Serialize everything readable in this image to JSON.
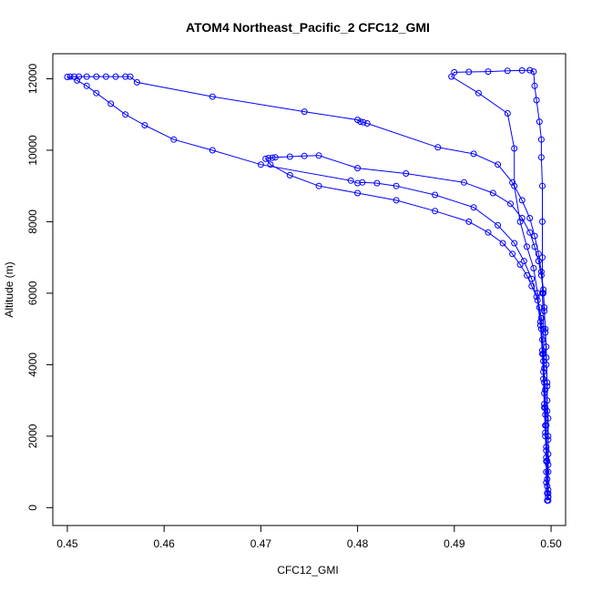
{
  "chart_data": {
    "type": "line",
    "title": "ATOM4 Northeast_Pacific_2 CFC12_GMI",
    "xlabel": "CFC12_GMI",
    "ylabel": "Altitude (m)",
    "xlim": [
      0.4485,
      0.5015
    ],
    "ylim": [
      -500,
      12700
    ],
    "x_ticks": [
      0.45,
      0.46,
      0.47,
      0.48,
      0.49,
      0.5
    ],
    "x_tick_labels": [
      "0.45",
      "0.46",
      "0.47",
      "0.48",
      "0.49",
      "0.50"
    ],
    "y_ticks": [
      0,
      2000,
      4000,
      6000,
      8000,
      10000,
      12000
    ],
    "y_tick_labels": [
      "0",
      "2000",
      "4000",
      "6000",
      "8000",
      "10000",
      "12000"
    ],
    "grid": false,
    "legend": "none",
    "color": "#0000ff",
    "series": [
      {
        "points": [
          [
            0.4996,
            200
          ],
          [
            0.4996,
            400
          ],
          [
            0.4995,
            700
          ],
          [
            0.4995,
            1000
          ],
          [
            0.4995,
            1300
          ],
          [
            0.4995,
            1600
          ],
          [
            0.4994,
            2000
          ],
          [
            0.4994,
            2300
          ],
          [
            0.4994,
            2600
          ],
          [
            0.4993,
            2900
          ],
          [
            0.4993,
            3200
          ],
          [
            0.4993,
            3500
          ],
          [
            0.4992,
            3800
          ],
          [
            0.4992,
            4100
          ],
          [
            0.4991,
            4400
          ],
          [
            0.4991,
            4700
          ],
          [
            0.499,
            5000
          ],
          [
            0.499,
            5300
          ],
          [
            0.4988,
            5600
          ],
          [
            0.4985,
            5900
          ],
          [
            0.498,
            6200
          ],
          [
            0.4975,
            6500
          ],
          [
            0.4968,
            6800
          ],
          [
            0.496,
            7100
          ],
          [
            0.495,
            7400
          ],
          [
            0.4935,
            7700
          ],
          [
            0.4915,
            8000
          ],
          [
            0.488,
            8300
          ],
          [
            0.484,
            8600
          ],
          [
            0.48,
            8800
          ],
          [
            0.476,
            9000
          ],
          [
            0.473,
            9300
          ],
          [
            0.471,
            9600
          ],
          [
            0.4705,
            9760
          ],
          [
            0.4708,
            9780
          ],
          [
            0.4712,
            9790
          ],
          [
            0.4715,
            9800
          ],
          [
            0.473,
            9820
          ],
          [
            0.4745,
            9840
          ],
          [
            0.476,
            9850
          ],
          [
            0.48,
            9500
          ],
          [
            0.485,
            9350
          ],
          [
            0.491,
            9100
          ],
          [
            0.494,
            8800
          ],
          [
            0.4958,
            8500
          ],
          [
            0.497,
            8100
          ],
          [
            0.4978,
            7700
          ],
          [
            0.4983,
            7300
          ],
          [
            0.4987,
            6900
          ],
          [
            0.499,
            6500
          ],
          [
            0.4992,
            6000
          ],
          [
            0.4993,
            5500
          ],
          [
            0.4994,
            5000
          ],
          [
            0.4995,
            4500
          ],
          [
            0.4995,
            4000
          ],
          [
            0.4996,
            3500
          ],
          [
            0.4996,
            3000
          ],
          [
            0.4997,
            2500
          ],
          [
            0.4997,
            2000
          ],
          [
            0.4997,
            1500
          ],
          [
            0.4997,
            1000
          ],
          [
            0.4997,
            500
          ],
          [
            0.4997,
            200
          ]
        ]
      },
      {
        "points": [
          [
            0.4997,
            300
          ],
          [
            0.4996,
            800
          ],
          [
            0.4995,
            1400
          ],
          [
            0.4994,
            2100
          ],
          [
            0.4993,
            2800
          ],
          [
            0.4992,
            3600
          ],
          [
            0.4991,
            4300
          ],
          [
            0.4989,
            5100
          ],
          [
            0.4986,
            5800
          ],
          [
            0.498,
            6400
          ],
          [
            0.4972,
            6900
          ],
          [
            0.4962,
            7400
          ],
          [
            0.4945,
            7900
          ],
          [
            0.492,
            8400
          ],
          [
            0.488,
            8750
          ],
          [
            0.484,
            9000
          ],
          [
            0.482,
            9080
          ],
          [
            0.4805,
            9100
          ],
          [
            0.48,
            9080
          ],
          [
            0.4793,
            9150
          ],
          [
            0.47,
            9600
          ],
          [
            0.465,
            10000
          ],
          [
            0.461,
            10300
          ],
          [
            0.458,
            10700
          ],
          [
            0.456,
            11000
          ],
          [
            0.4545,
            11300
          ],
          [
            0.453,
            11600
          ],
          [
            0.452,
            11800
          ],
          [
            0.451,
            11950
          ],
          [
            0.45,
            12050
          ],
          [
            0.4503,
            12060
          ],
          [
            0.4507,
            12060
          ],
          [
            0.4512,
            12060
          ],
          [
            0.452,
            12060
          ],
          [
            0.453,
            12060
          ],
          [
            0.454,
            12060
          ],
          [
            0.455,
            12060
          ],
          [
            0.456,
            12060
          ],
          [
            0.4565,
            12060
          ],
          [
            0.4572,
            11900
          ],
          [
            0.465,
            11500
          ],
          [
            0.4745,
            11080
          ],
          [
            0.48,
            10850
          ],
          [
            0.4803,
            10800
          ],
          [
            0.4806,
            10780
          ],
          [
            0.481,
            10750
          ],
          [
            0.4883,
            10080
          ],
          [
            0.492,
            9900
          ],
          [
            0.4945,
            9600
          ],
          [
            0.496,
            9100
          ],
          [
            0.497,
            8600
          ],
          [
            0.4978,
            8100
          ],
          [
            0.4983,
            7600
          ],
          [
            0.4987,
            7100
          ],
          [
            0.499,
            6600
          ],
          [
            0.4992,
            6100
          ],
          [
            0.4993,
            5600
          ],
          [
            0.4994,
            4900
          ],
          [
            0.4995,
            4200
          ],
          [
            0.4996,
            3400
          ],
          [
            0.4996,
            2700
          ],
          [
            0.4997,
            1900
          ],
          [
            0.4997,
            1200
          ],
          [
            0.4997,
            400
          ]
        ]
      },
      {
        "points": [
          [
            0.4996,
            600
          ],
          [
            0.4995,
            1700
          ],
          [
            0.4994,
            2800
          ],
          [
            0.4993,
            3900
          ],
          [
            0.4992,
            5000
          ],
          [
            0.4991,
            6000
          ],
          [
            0.4991,
            7000
          ],
          [
            0.4991,
            8000
          ],
          [
            0.4991,
            9000
          ],
          [
            0.499,
            9800
          ],
          [
            0.499,
            10300
          ],
          [
            0.4988,
            10800
          ],
          [
            0.4985,
            11400
          ],
          [
            0.4983,
            11800
          ],
          [
            0.4982,
            12200
          ],
          [
            0.4978,
            12240
          ],
          [
            0.497,
            12230
          ],
          [
            0.4955,
            12220
          ],
          [
            0.4935,
            12200
          ],
          [
            0.4915,
            12190
          ],
          [
            0.49,
            12180
          ],
          [
            0.4897,
            12060
          ],
          [
            0.4925,
            11600
          ],
          [
            0.4955,
            11030
          ],
          [
            0.4962,
            10050
          ],
          [
            0.4962,
            9000
          ],
          [
            0.4968,
            8000
          ],
          [
            0.4975,
            7300
          ],
          [
            0.4982,
            6700
          ],
          [
            0.4986,
            6000
          ],
          [
            0.4989,
            5200
          ],
          [
            0.4992,
            4300
          ],
          [
            0.4994,
            3300
          ],
          [
            0.4995,
            2300
          ],
          [
            0.4996,
            1300
          ],
          [
            0.4997,
            300
          ]
        ]
      }
    ]
  }
}
